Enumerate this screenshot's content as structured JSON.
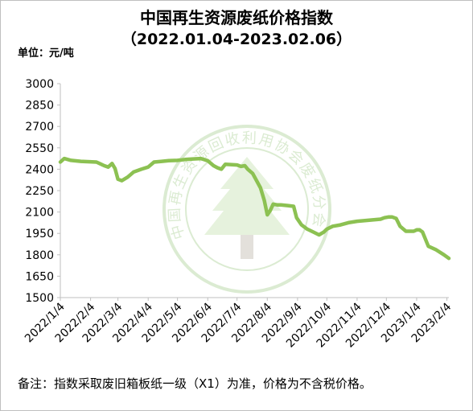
{
  "title": "中国再生资源废纸价格指数",
  "subtitle": "（2022.01.04-2023.02.06）",
  "unit_label": "单位：元/吨",
  "footnote": "备注：指数采取废旧箱板纸一级（X1）为准，价格为不含税价格。",
  "watermark_text": "中国再生资源回收利用协会废纸分会",
  "colors": {
    "line": "#8cc152",
    "axis": "#bfbfbf",
    "text": "#000000",
    "watermark": "#b8d9a6"
  },
  "chart_data": {
    "type": "line",
    "title": "中国再生资源废纸价格指数",
    "subtitle": "（2022.01.04-2023.02.06）",
    "xlabel": "",
    "ylabel": "单位：元/吨",
    "ylim": [
      1500,
      3000
    ],
    "yticks": [
      1500,
      1650,
      1800,
      1950,
      2100,
      2250,
      2400,
      2550,
      2700,
      2850,
      3000
    ],
    "xlim": [
      "2022-01-04",
      "2023-02-06"
    ],
    "xtick_labels": [
      "2022/1/4",
      "2022/2/4",
      "2022/3/4",
      "2022/4/4",
      "2022/5/4",
      "2022/6/4",
      "2022/7/4",
      "2022/8/4",
      "2022/9/4",
      "2022/10/4",
      "2022/11/4",
      "2022/12/4",
      "2023/1/4",
      "2023/2/4"
    ],
    "xtick_dates": [
      "2022-01-04",
      "2022-02-04",
      "2022-03-04",
      "2022-04-04",
      "2022-05-04",
      "2022-06-04",
      "2022-07-04",
      "2022-08-04",
      "2022-09-04",
      "2022-10-04",
      "2022-11-04",
      "2022-12-04",
      "2023-01-04",
      "2023-02-04"
    ],
    "grid": false,
    "legend": "none",
    "series": [
      {
        "x": [
          "2022-01-04",
          "2022-01-08",
          "2022-01-15",
          "2022-01-25",
          "2022-02-10",
          "2022-02-18",
          "2022-02-22",
          "2022-02-26",
          "2022-03-01",
          "2022-03-04",
          "2022-03-08",
          "2022-03-14",
          "2022-03-20",
          "2022-03-28",
          "2022-04-04",
          "2022-04-10",
          "2022-04-18",
          "2022-04-25",
          "2022-05-04",
          "2022-05-12",
          "2022-05-20",
          "2022-05-28",
          "2022-06-04",
          "2022-06-10",
          "2022-06-14",
          "2022-06-18",
          "2022-06-22",
          "2022-07-04",
          "2022-07-08",
          "2022-07-12",
          "2022-07-15",
          "2022-07-20",
          "2022-07-28",
          "2022-08-01",
          "2022-08-04",
          "2022-08-07",
          "2022-08-10",
          "2022-08-14",
          "2022-08-18",
          "2022-08-25",
          "2022-08-31",
          "2022-09-03",
          "2022-09-08",
          "2022-09-14",
          "2022-09-20",
          "2022-09-26",
          "2022-10-01",
          "2022-10-04",
          "2022-10-10",
          "2022-10-18",
          "2022-10-26",
          "2022-11-04",
          "2022-11-12",
          "2022-11-20",
          "2022-11-28",
          "2022-12-02",
          "2022-12-06",
          "2022-12-10",
          "2022-12-14",
          "2022-12-18",
          "2022-12-24",
          "2023-01-01",
          "2023-01-04",
          "2023-01-07",
          "2023-01-10",
          "2023-01-16",
          "2023-01-24",
          "2023-02-01",
          "2023-02-06"
        ],
        "y": [
          2450,
          2475,
          2462,
          2455,
          2450,
          2425,
          2415,
          2440,
          2405,
          2330,
          2320,
          2345,
          2380,
          2400,
          2415,
          2450,
          2455,
          2460,
          2462,
          2468,
          2472,
          2475,
          2460,
          2425,
          2410,
          2400,
          2435,
          2430,
          2420,
          2425,
          2400,
          2370,
          2270,
          2180,
          2080,
          2110,
          2155,
          2150,
          2150,
          2145,
          2140,
          2060,
          2010,
          1980,
          1960,
          1940,
          1960,
          1980,
          2000,
          2010,
          2025,
          2035,
          2040,
          2045,
          2050,
          2060,
          2065,
          2065,
          2055,
          2000,
          1965,
          1965,
          1975,
          1975,
          1960,
          1860,
          1835,
          1800,
          1775
        ]
      }
    ]
  }
}
